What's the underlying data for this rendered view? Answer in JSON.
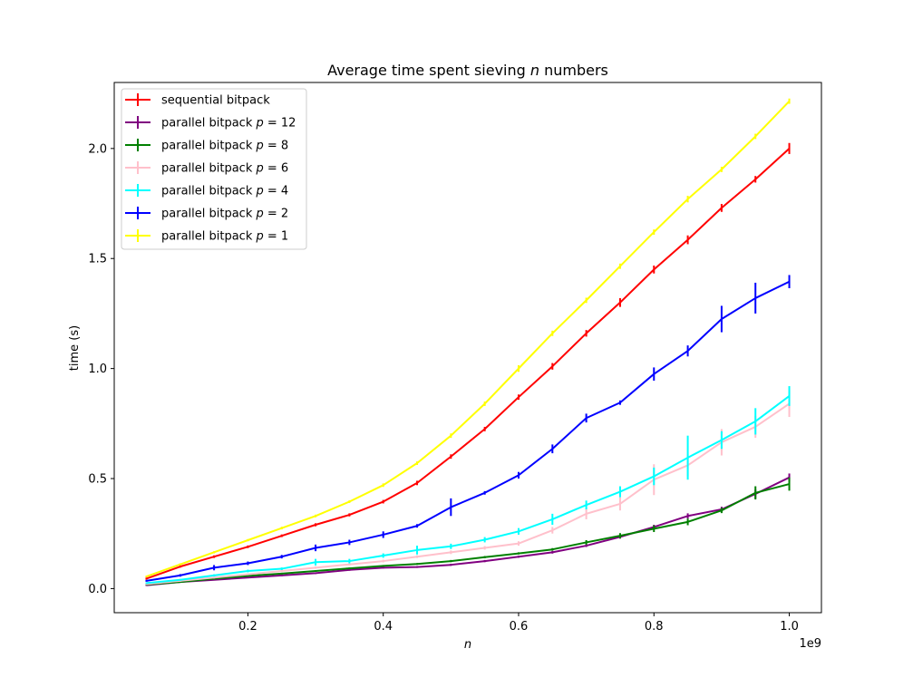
{
  "chart_data": {
    "type": "line",
    "title_prefix": "Average time spent sieving ",
    "title_var": "n",
    "title_suffix": " numbers",
    "xlabel": "n",
    "ylabel": "time (s)",
    "x_offset_label": "1e9",
    "xlim": [
      0.0025,
      1.0475
    ],
    "ylim": [
      -0.1095,
      2.3
    ],
    "xticks": [
      {
        "value": 0.2,
        "label": "0.2"
      },
      {
        "value": 0.4,
        "label": "0.4"
      },
      {
        "value": 0.6,
        "label": "0.6"
      },
      {
        "value": 0.8,
        "label": "0.8"
      },
      {
        "value": 1.0,
        "label": "1.0"
      }
    ],
    "yticks": [
      {
        "value": 0.0,
        "label": "0.0"
      },
      {
        "value": 0.5,
        "label": "0.5"
      },
      {
        "value": 1.0,
        "label": "1.0"
      },
      {
        "value": 1.5,
        "label": "1.5"
      },
      {
        "value": 2.0,
        "label": "2.0"
      }
    ],
    "grid": false,
    "legend_position": "top-left",
    "x": [
      0.05,
      0.1,
      0.15,
      0.2,
      0.25,
      0.3,
      0.35,
      0.4,
      0.45,
      0.5,
      0.55,
      0.6,
      0.65,
      0.7,
      0.75,
      0.8,
      0.85,
      0.9,
      0.95,
      1.0
    ],
    "series": [
      {
        "name": "sequential bitpack",
        "var": "",
        "eq": "",
        "color": "#ff0000",
        "values": [
          0.045,
          0.1,
          0.145,
          0.19,
          0.24,
          0.29,
          0.335,
          0.395,
          0.48,
          0.6,
          0.725,
          0.87,
          1.01,
          1.16,
          1.3,
          1.45,
          1.585,
          1.73,
          1.86,
          2.0
        ],
        "errors": [
          0.005,
          0.005,
          0.006,
          0.006,
          0.006,
          0.007,
          0.007,
          0.008,
          0.01,
          0.01,
          0.01,
          0.012,
          0.015,
          0.015,
          0.02,
          0.018,
          0.02,
          0.018,
          0.015,
          0.025
        ]
      },
      {
        "name": "parallel bitpack ",
        "var": "p",
        "eq": " = 12",
        "color": "#800080",
        "values": [
          0.015,
          0.03,
          0.04,
          0.05,
          0.06,
          0.07,
          0.085,
          0.095,
          0.098,
          0.108,
          0.125,
          0.145,
          0.165,
          0.195,
          0.235,
          0.28,
          0.33,
          0.36,
          0.43,
          0.505
        ],
        "errors": [
          0.003,
          0.003,
          0.003,
          0.003,
          0.004,
          0.004,
          0.004,
          0.004,
          0.004,
          0.005,
          0.005,
          0.005,
          0.006,
          0.006,
          0.008,
          0.01,
          0.012,
          0.012,
          0.02,
          0.018
        ]
      },
      {
        "name": "parallel bitpack ",
        "var": "p",
        "eq": " = 8",
        "color": "#008000",
        "values": [
          0.018,
          0.03,
          0.045,
          0.058,
          0.068,
          0.08,
          0.092,
          0.103,
          0.112,
          0.125,
          0.143,
          0.16,
          0.178,
          0.21,
          0.24,
          0.272,
          0.303,
          0.355,
          0.435,
          0.475
        ],
        "errors": [
          0.003,
          0.003,
          0.003,
          0.003,
          0.004,
          0.004,
          0.004,
          0.004,
          0.004,
          0.005,
          0.005,
          0.005,
          0.006,
          0.01,
          0.012,
          0.015,
          0.015,
          0.012,
          0.03,
          0.03
        ]
      },
      {
        "name": "parallel bitpack ",
        "var": "p",
        "eq": " = 6",
        "color": "#ffc0cb",
        "values": [
          0.02,
          0.035,
          0.05,
          0.065,
          0.08,
          0.095,
          0.11,
          0.125,
          0.145,
          0.165,
          0.185,
          0.205,
          0.265,
          0.34,
          0.385,
          0.495,
          0.56,
          0.665,
          0.735,
          0.84
        ],
        "errors": [
          0.003,
          0.004,
          0.004,
          0.004,
          0.005,
          0.005,
          0.005,
          0.006,
          0.006,
          0.008,
          0.008,
          0.01,
          0.015,
          0.025,
          0.03,
          0.07,
          0.05,
          0.06,
          0.05,
          0.06
        ]
      },
      {
        "name": "parallel bitpack ",
        "var": "p",
        "eq": " = 4",
        "color": "#00ffff",
        "values": [
          0.025,
          0.04,
          0.06,
          0.08,
          0.09,
          0.12,
          0.125,
          0.15,
          0.175,
          0.192,
          0.222,
          0.26,
          0.315,
          0.38,
          0.44,
          0.51,
          0.595,
          0.675,
          0.76,
          0.875
        ],
        "errors": [
          0.003,
          0.004,
          0.005,
          0.006,
          0.006,
          0.015,
          0.01,
          0.01,
          0.02,
          0.012,
          0.012,
          0.015,
          0.025,
          0.02,
          0.025,
          0.04,
          0.1,
          0.04,
          0.06,
          0.045
        ]
      },
      {
        "name": "parallel bitpack ",
        "var": "p",
        "eq": " = 2",
        "color": "#0000ff",
        "values": [
          0.035,
          0.06,
          0.095,
          0.115,
          0.145,
          0.185,
          0.21,
          0.245,
          0.285,
          0.37,
          0.435,
          0.515,
          0.635,
          0.775,
          0.845,
          0.975,
          1.08,
          1.225,
          1.32,
          1.395
        ],
        "errors": [
          0.004,
          0.006,
          0.012,
          0.008,
          0.008,
          0.015,
          0.012,
          0.015,
          0.008,
          0.04,
          0.008,
          0.015,
          0.02,
          0.02,
          0.01,
          0.03,
          0.025,
          0.06,
          0.07,
          0.03
        ]
      },
      {
        "name": "parallel bitpack ",
        "var": "p",
        "eq": " = 1",
        "color": "#ffff00",
        "values": [
          0.055,
          0.11,
          0.165,
          0.22,
          0.275,
          0.33,
          0.395,
          0.47,
          0.57,
          0.695,
          0.84,
          1.0,
          1.16,
          1.31,
          1.465,
          1.62,
          1.77,
          1.905,
          2.055,
          2.215
        ],
        "errors": [
          0.004,
          0.005,
          0.005,
          0.005,
          0.006,
          0.006,
          0.006,
          0.008,
          0.008,
          0.01,
          0.01,
          0.015,
          0.012,
          0.012,
          0.012,
          0.012,
          0.015,
          0.012,
          0.012,
          0.012
        ]
      }
    ]
  }
}
